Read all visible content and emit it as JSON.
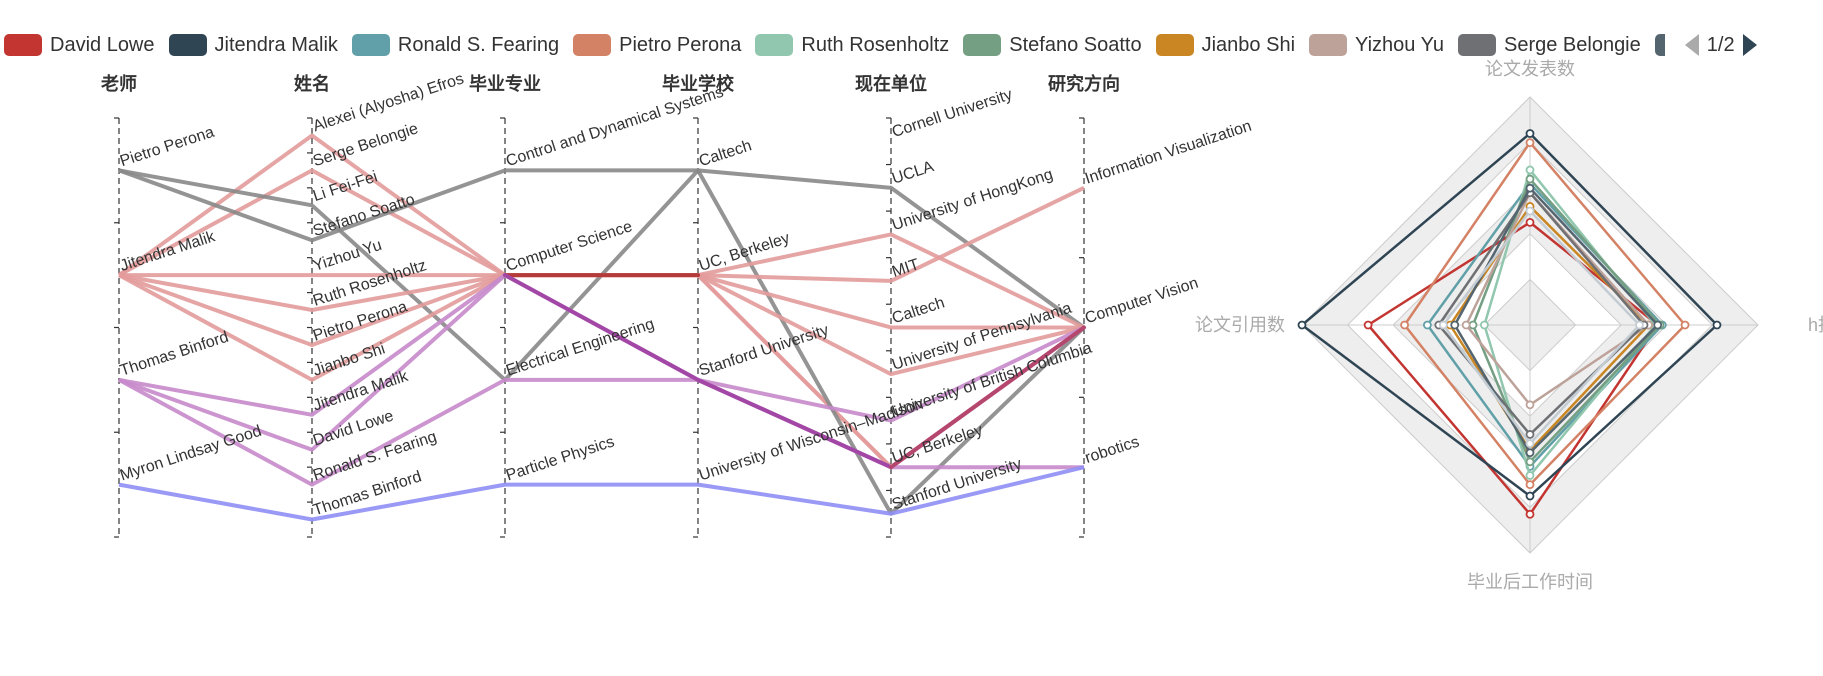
{
  "chart_data": [
    {
      "type": "parallel",
      "axes": [
        {
          "name": "老师",
          "categories": [
            "Pietro Perona",
            "Jitendra Malik",
            "Thomas Binford",
            "Myron Lindsay Good"
          ]
        },
        {
          "name": "姓名",
          "categories": [
            "Alexei (Alyosha) Efros",
            "Serge Belongie",
            "Li Fei-Fei",
            "Stefano Soatto",
            "Yizhou Yu",
            "Ruth Rosenholtz",
            "Pietro Perona",
            "Jianbo Shi",
            "Jitendra Malik",
            "David Lowe",
            "Ronald S. Fearing",
            "Thomas Binford"
          ]
        },
        {
          "name": "毕业专业",
          "categories": [
            "Control and Dynamical Systems",
            "Computer Science",
            "Electrical Engineering",
            "Particle Physics"
          ]
        },
        {
          "name": "毕业学校",
          "categories": [
            "Caltech",
            "UC, Berkeley",
            "Stanford University",
            "University of Wisconsin–Madison"
          ]
        },
        {
          "name": "现在单位",
          "categories": [
            "Cornell University",
            "UCLA",
            "University of HongKong",
            "MIT",
            "Caltech",
            "University of Pennsylvania",
            "University of British Columbia",
            "UC, Berkeley",
            "Stanford University"
          ]
        },
        {
          "name": "研究方向",
          "categories": [
            "Information Visualization",
            "Computer Vision",
            "robotics"
          ]
        }
      ],
      "series": [
        {
          "values": [
            "Jitendra Malik",
            "Alexei (Alyosha) Efros",
            "Computer Science",
            "UC, Berkeley",
            "UC, Berkeley",
            "Computer Vision"
          ],
          "color": "#e39b9b"
        },
        {
          "values": [
            "Jitendra Malik",
            "Serge Belongie",
            "Computer Science",
            "UC, Berkeley",
            "UC, Berkeley",
            "Computer Vision"
          ],
          "color": "#e39b9b"
        },
        {
          "values": [
            "Pietro Perona",
            "Li Fei-Fei",
            "Electrical Engineering",
            "Caltech",
            "Stanford University",
            "Computer Vision"
          ],
          "color": "#888888"
        },
        {
          "values": [
            "Pietro Perona",
            "Stefano Soatto",
            "Control and Dynamical Systems",
            "Caltech",
            "UCLA",
            "Computer Vision"
          ],
          "color": "#888888"
        },
        {
          "values": [
            "Jitendra Malik",
            "Yizhou Yu",
            "Computer Science",
            "UC, Berkeley",
            "University of HongKong",
            "Computer Vision"
          ],
          "color": "#e39b9b"
        },
        {
          "values": [
            "Jitendra Malik",
            "Ruth Rosenholtz",
            "Computer Science",
            "UC, Berkeley",
            "MIT",
            "Information Visualization"
          ],
          "color": "#e39b9b"
        },
        {
          "values": [
            "Jitendra Malik",
            "Pietro Perona",
            "Computer Science",
            "UC, Berkeley",
            "Caltech",
            "Computer Vision"
          ],
          "color": "#e39b9b"
        },
        {
          "values": [
            "Jitendra Malik",
            "Jianbo Shi",
            "Computer Science",
            "UC, Berkeley",
            "University of Pennsylvania",
            "Computer Vision"
          ],
          "color": "#e39b9b"
        },
        {
          "values": [
            "Thomas Binford",
            "Jitendra Malik",
            "Computer Science",
            "Stanford University",
            "UC, Berkeley",
            "Computer Vision"
          ],
          "color": "#c68acb"
        },
        {
          "values": [
            "Thomas Binford",
            "David Lowe",
            "Computer Science",
            "Stanford University",
            "University of British Columbia",
            "Computer Vision"
          ],
          "color": "#c68acb"
        },
        {
          "values": [
            "Thomas Binford",
            "Ronald S. Fearing",
            "Electrical Engineering",
            "Stanford University",
            "UC, Berkeley",
            "robotics"
          ],
          "color": "#c68acb"
        },
        {
          "values": [
            "Myron Lindsay Good",
            "Thomas Binford",
            "Particle Physics",
            "University of Wisconsin–Madison",
            "Stanford University",
            "robotics"
          ],
          "color": "#8f8ff5"
        }
      ],
      "highlight_segments": [
        {
          "from_axis": 2,
          "from": "Computer Science",
          "to_axis": 3,
          "to": "UC, Berkeley",
          "color": "#b53a3a"
        },
        {
          "from_axis": 2,
          "from": "Computer Science",
          "to_axis": 3,
          "to": "Stanford University",
          "color": "#a347a6"
        },
        {
          "from_axis": 3,
          "from": "Stanford University",
          "to_axis": 4,
          "to": "UC, Berkeley",
          "color": "#a347a6"
        },
        {
          "from_axis": 4,
          "from": "UC, Berkeley",
          "to_axis": 5,
          "to": "Computer Vision",
          "color": "#b5476e"
        }
      ]
    },
    {
      "type": "radar",
      "indicators": [
        "论文发表数",
        "h指数",
        "毕业后工作时间",
        "论文引用数"
      ],
      "series": [
        {
          "name": "David Lowe",
          "color": "#c23531",
          "values": [
            0.45,
            0.56,
            0.83,
            0.71
          ]
        },
        {
          "name": "Jitendra Malik",
          "color": "#2f4554",
          "values": [
            0.84,
            0.82,
            0.75,
            1.0
          ]
        },
        {
          "name": "Ronald S. Fearing",
          "color": "#61a0a8",
          "values": [
            0.62,
            0.58,
            0.62,
            0.45
          ]
        },
        {
          "name": "Pietro Perona",
          "color": "#d48265",
          "values": [
            0.8,
            0.68,
            0.7,
            0.55
          ]
        },
        {
          "name": "Ruth Rosenholtz",
          "color": "#91c7ae",
          "values": [
            0.68,
            0.55,
            0.66,
            0.2
          ]
        },
        {
          "name": "Stefano Soatto",
          "color": "#749f83",
          "values": [
            0.64,
            0.57,
            0.6,
            0.25
          ]
        },
        {
          "name": "Jianbo Shi",
          "color": "#ca8622",
          "values": [
            0.52,
            0.52,
            0.55,
            0.35
          ]
        },
        {
          "name": "Yizhou Yu",
          "color": "#bda29a",
          "values": [
            0.58,
            0.52,
            0.35,
            0.28
          ]
        },
        {
          "name": "Serge Belongie",
          "color": "#6e7074",
          "values": [
            0.58,
            0.5,
            0.48,
            0.4
          ]
        },
        {
          "name": "Alexei (Alyosha) Efros",
          "color": "#546570",
          "values": [
            0.6,
            0.56,
            0.56,
            0.33
          ]
        },
        {
          "name": "Li Fei-Fei",
          "color": "#c4ccd3",
          "values": [
            0.5,
            0.48,
            0.52,
            0.38
          ]
        }
      ],
      "split_area": true,
      "split_number": 5
    }
  ],
  "legend": {
    "items": [
      {
        "name": "David Lowe",
        "color": "#c23531"
      },
      {
        "name": "Jitendra Malik",
        "color": "#2f4554"
      },
      {
        "name": "Ronald S. Fearing",
        "color": "#61a0a8"
      },
      {
        "name": "Pietro Perona",
        "color": "#d48265"
      },
      {
        "name": "Ruth Rosenholtz",
        "color": "#91c7ae"
      },
      {
        "name": "Stefano Soatto",
        "color": "#749f83"
      },
      {
        "name": "Jianbo Shi",
        "color": "#ca8622"
      },
      {
        "name": "Yizhou Yu",
        "color": "#bda29a"
      },
      {
        "name": "Serge Belongie",
        "color": "#6e7074"
      },
      {
        "name": "",
        "color": "#546570"
      }
    ],
    "page_text": "1/2",
    "placement": "top"
  }
}
